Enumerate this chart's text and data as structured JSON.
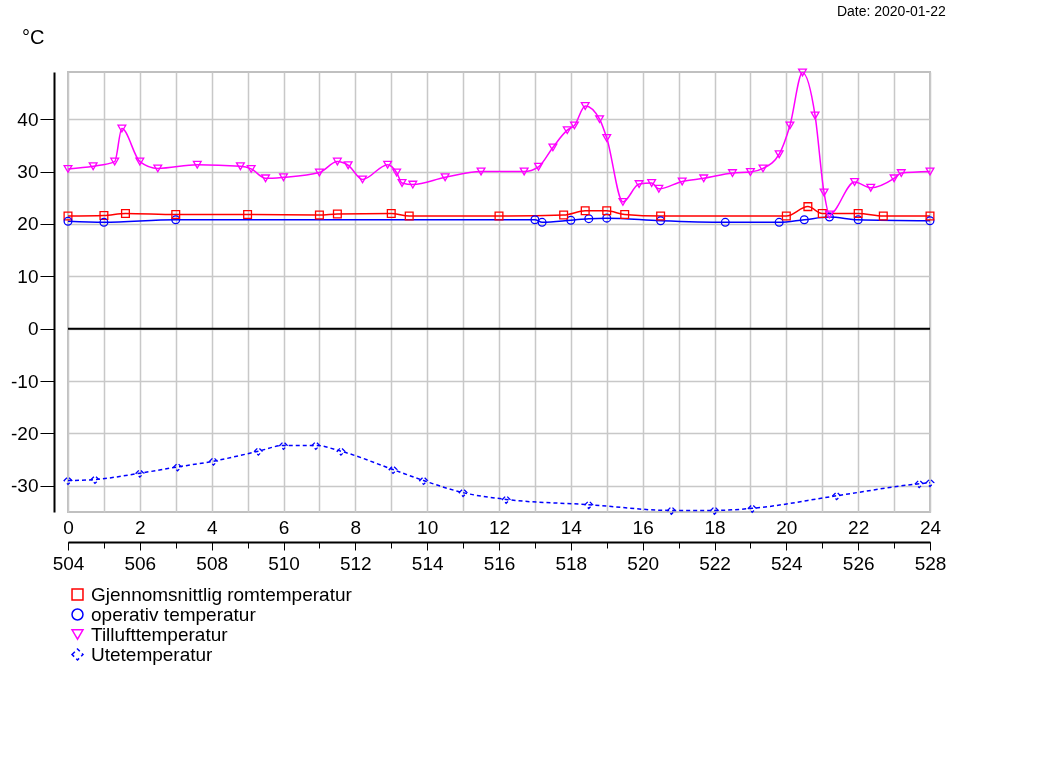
{
  "chart_data": {
    "type": "line",
    "ylabel": "°C",
    "annotations": [
      "Date: 2020-01-22"
    ],
    "xlim": [
      0,
      24
    ],
    "xticks": [
      0,
      {
        "value": 1,
        "label": null
      },
      2,
      {
        "value": 3,
        "label": null
      },
      4,
      {
        "value": 5,
        "label": null
      },
      6,
      {
        "value": 7,
        "label": null
      },
      8,
      {
        "value": 9,
        "label": null
      },
      10,
      {
        "value": 11,
        "label": null
      },
      12,
      {
        "value": 13,
        "label": null
      },
      14,
      {
        "value": 15,
        "label": null
      },
      16,
      {
        "value": 17,
        "label": null
      },
      18,
      {
        "value": 19,
        "label": null
      },
      20,
      {
        "value": 21,
        "label": null
      },
      22,
      {
        "value": 23,
        "label": null
      },
      24
    ],
    "x2lim": [
      504,
      528
    ],
    "x2ticks": [
      504,
      506,
      508,
      510,
      512,
      514,
      516,
      518,
      520,
      522,
      524,
      526,
      528
    ],
    "ylim": [
      -35,
      49
    ],
    "yticks": [
      -30,
      -20,
      -10,
      0,
      10,
      20,
      30,
      40
    ],
    "grid": true,
    "legend": "bottom",
    "ref_lines": [
      {
        "axis": "y",
        "value": 0,
        "color": "#000000"
      }
    ],
    "series": [
      {
        "name": "Gjennomsnittlig romtemperatur",
        "color": "#ff0000",
        "marker": "square",
        "line_style": "solid",
        "x": [
          0,
          1,
          1.6,
          3,
          5,
          7,
          7.5,
          9,
          9.5,
          12,
          13.8,
          14.4,
          15,
          15.5,
          16.5,
          20,
          20.6,
          21,
          22,
          22.7,
          24
        ],
        "values": [
          21.5,
          21.6,
          22,
          21.8,
          21.8,
          21.7,
          21.9,
          22,
          21.5,
          21.5,
          21.7,
          22.5,
          22.5,
          21.8,
          21.5,
          21.5,
          23.3,
          22,
          22,
          21.5,
          21.5
        ]
      },
      {
        "name": "operativ temperatur",
        "color": "#0000ff",
        "marker": "circle",
        "line_style": "solid",
        "x": [
          0,
          1,
          3,
          13,
          13.2,
          14,
          14.5,
          15,
          16.5,
          18.3,
          19.8,
          20.5,
          21.2,
          22,
          24
        ],
        "values": [
          20.5,
          20.3,
          20.8,
          20.8,
          20.3,
          20.7,
          21,
          21.1,
          20.6,
          20.3,
          20.3,
          20.8,
          21.3,
          20.8,
          20.6
        ]
      },
      {
        "name": "Tillufttemperatur",
        "color": "#ff00ff",
        "marker": "triangle",
        "line_style": "solid",
        "x": [
          0,
          0.7,
          1.3,
          1.5,
          2,
          2.5,
          3.6,
          4.8,
          5.1,
          5.5,
          6,
          7,
          7.5,
          7.8,
          8.2,
          8.9,
          9.15,
          9.3,
          9.6,
          10.5,
          11.5,
          12.7,
          13.1,
          13.5,
          13.9,
          14.1,
          14.4,
          14.8,
          15,
          15.45,
          15.9,
          16.25,
          16.45,
          17.1,
          17.7,
          18.5,
          19,
          19.35,
          19.8,
          20.1,
          20.45,
          20.8,
          21.05,
          21.2,
          21.9,
          22.35,
          23,
          23.2,
          24
        ],
        "values": [
          30.5,
          31,
          31.9,
          38.2,
          31.9,
          30.6,
          31.3,
          31,
          30.5,
          28.7,
          28.9,
          29.8,
          31.9,
          31.2,
          28.5,
          31.3,
          29.8,
          27.8,
          27.5,
          28.9,
          30,
          30,
          30.9,
          34.6,
          37.9,
          38.8,
          42.5,
          40,
          36.4,
          24.2,
          27.6,
          27.8,
          26.7,
          28.1,
          28.7,
          29.7,
          29.9,
          30.6,
          33.3,
          38.8,
          48.9,
          40.7,
          26,
          21.8,
          28,
          26.9,
          28.7,
          29.7,
          30
        ]
      },
      {
        "name": "Utetemperatur",
        "color": "#0000ff",
        "marker": "diamond",
        "line_style": "dashed",
        "x": [
          0,
          0.75,
          2,
          3.05,
          4.05,
          5.3,
          6,
          6.9,
          7.6,
          9.05,
          9.9,
          11,
          12.2,
          14.5,
          16.8,
          18,
          19.05,
          21.4,
          23.7,
          24
        ],
        "values": [
          -29,
          -28.8,
          -27.6,
          -26.4,
          -25.3,
          -23.4,
          -22.3,
          -22.3,
          -23.4,
          -26.9,
          -29,
          -31.3,
          -32.6,
          -33.6,
          -34.7,
          -34.7,
          -34.3,
          -31.9,
          -29.6,
          -29.4
        ]
      }
    ]
  }
}
